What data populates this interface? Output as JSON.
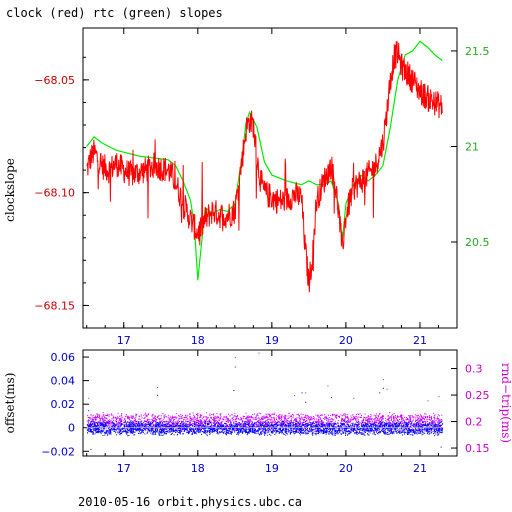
{
  "chart_data": [
    {
      "type": "line",
      "title": "clock (red) rtc (green) slopes",
      "ylabel": "clockslope",
      "xlim": [
        16.45,
        21.5
      ],
      "ylim": [
        -68.16,
        -68.027
      ],
      "y2lim": [
        20.05,
        21.62
      ],
      "x_ticks": [
        17,
        18,
        19,
        20,
        21
      ],
      "y_ticks": [
        -68.05,
        -68.1,
        -68.15
      ],
      "y2_ticks": [
        21.5,
        21,
        20.5
      ],
      "y_color": "#cc0000",
      "y2_color": "#22cc22",
      "series": [
        {
          "name": "clock (red)",
          "color": "#ff0000",
          "x": [
            16.5,
            16.55,
            16.6,
            16.65,
            16.7,
            16.8,
            16.9,
            17.0,
            17.1,
            17.2,
            17.3,
            17.4,
            17.5,
            17.6,
            17.7,
            17.8,
            17.85,
            17.9,
            17.95,
            18.0,
            18.1,
            18.2,
            18.3,
            18.4,
            18.5,
            18.6,
            18.65,
            18.7,
            18.75,
            18.8,
            18.85,
            18.9,
            19.0,
            19.1,
            19.2,
            19.3,
            19.4,
            19.45,
            19.5,
            19.55,
            19.6,
            19.7,
            19.8,
            19.85,
            19.9,
            19.95,
            20.0,
            20.1,
            20.2,
            20.3,
            20.4,
            20.5,
            20.55,
            20.6,
            20.65,
            20.7,
            20.75,
            20.8,
            20.85,
            20.9,
            21.0,
            21.1,
            21.2,
            21.3
          ],
          "y": [
            -68.09,
            -68.085,
            -68.082,
            -68.085,
            -68.088,
            -68.09,
            -68.087,
            -68.09,
            -68.092,
            -68.091,
            -68.09,
            -68.088,
            -68.089,
            -68.09,
            -68.095,
            -68.105,
            -68.108,
            -68.112,
            -68.115,
            -68.118,
            -68.112,
            -68.108,
            -68.11,
            -68.11,
            -68.108,
            -68.085,
            -68.072,
            -68.068,
            -68.07,
            -68.085,
            -68.095,
            -68.1,
            -68.102,
            -68.104,
            -68.103,
            -68.101,
            -68.102,
            -68.125,
            -68.14,
            -68.128,
            -68.104,
            -68.095,
            -68.088,
            -68.095,
            -68.108,
            -68.125,
            -68.11,
            -68.098,
            -68.095,
            -68.092,
            -68.088,
            -68.078,
            -68.065,
            -68.05,
            -68.04,
            -68.038,
            -68.044,
            -68.046,
            -68.048,
            -68.05,
            -68.055,
            -68.058,
            -68.06,
            -68.062
          ]
        },
        {
          "name": "rtc (green)",
          "color": "#00ee00",
          "x": [
            16.5,
            16.6,
            16.7,
            16.8,
            16.9,
            17.0,
            17.2,
            17.4,
            17.6,
            17.7,
            17.8,
            17.9,
            17.95,
            18.0,
            18.1,
            18.2,
            18.3,
            18.4,
            18.5,
            18.6,
            18.65,
            18.7,
            18.8,
            18.9,
            19.0,
            19.2,
            19.4,
            19.5,
            19.6,
            19.7,
            19.8,
            19.9,
            19.95,
            20.0,
            20.1,
            20.2,
            20.3,
            20.4,
            20.5,
            20.6,
            20.7,
            20.8,
            20.9,
            21.0,
            21.1,
            21.2,
            21.3
          ],
          "y": [
            21.0,
            21.05,
            21.02,
            21.0,
            20.98,
            20.97,
            20.95,
            20.94,
            20.93,
            20.9,
            20.82,
            20.72,
            20.6,
            20.3,
            20.68,
            20.65,
            20.67,
            20.66,
            20.7,
            20.95,
            21.12,
            21.18,
            21.1,
            20.92,
            20.85,
            20.82,
            20.8,
            20.82,
            20.8,
            20.8,
            20.82,
            20.7,
            20.5,
            20.7,
            20.8,
            20.85,
            20.82,
            20.85,
            20.9,
            21.1,
            21.35,
            21.48,
            21.5,
            21.55,
            21.52,
            21.48,
            21.45
          ]
        }
      ]
    },
    {
      "type": "scatter",
      "ylabel": "offset(ms)",
      "y2label": "rnd−trip(ms)",
      "xlim": [
        16.45,
        21.5
      ],
      "ylim": [
        -0.024,
        0.066
      ],
      "y2lim": [
        0.135,
        0.335
      ],
      "x_ticks": [
        17,
        18,
        19,
        20,
        21
      ],
      "y_ticks": [
        0.06,
        0.04,
        0.02,
        0,
        -0.02
      ],
      "y_tick_labels": [
        "0.06",
        "0.04",
        "0.02",
        "0",
        "−0.02"
      ],
      "y2_ticks": [
        0.3,
        0.25,
        0.2,
        0.15
      ],
      "y_color": "#0000cc",
      "y2_color": "#cc00cc",
      "series": [
        {
          "name": "offset",
          "color": "#0000ff",
          "x_start": 16.5,
          "x_end": 21.3,
          "band_center": 0.0,
          "band_halfwidth": 0.006,
          "outliers_x": [
            16.52,
            16.55,
            17.45,
            18.48,
            18.5,
            19.4,
            19.45,
            19.8,
            20.45,
            20.5,
            21.28
          ],
          "outliers_y": [
            0.015,
            -0.018,
            0.028,
            0.032,
            0.052,
            0.03,
            0.022,
            0.026,
            0.03,
            0.034,
            -0.016
          ]
        },
        {
          "name": "rnd-trip",
          "color": "#cc00ff",
          "x_start": 16.5,
          "x_end": 21.3,
          "band_center": 0.2,
          "band_halfwidth": 0.015,
          "outliers_x": [
            16.52,
            17.45,
            18.5,
            18.82,
            19.3,
            19.45,
            19.75,
            20.1,
            20.5,
            20.55,
            21.1,
            21.25
          ],
          "outliers_y": [
            0.245,
            0.265,
            0.322,
            0.33,
            0.25,
            0.255,
            0.268,
            0.245,
            0.28,
            0.262,
            0.24,
            0.248
          ]
        }
      ]
    }
  ],
  "footer": "2010-05-16 orbit.physics.ubc.ca"
}
